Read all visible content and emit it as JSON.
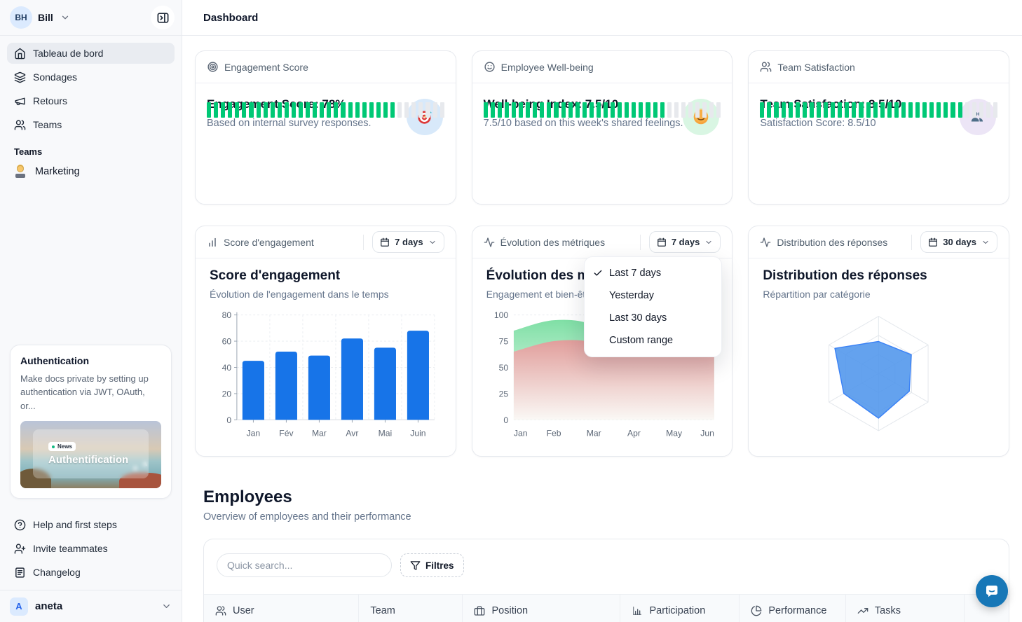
{
  "app": {
    "header_title": "Dashboard"
  },
  "sidebar": {
    "workspace": {
      "initials": "BH",
      "name": "Bill"
    },
    "nav": [
      {
        "label": "Tableau de bord",
        "icon": "home",
        "active": true
      },
      {
        "label": "Sondages",
        "icon": "layers",
        "active": false
      },
      {
        "label": "Retours",
        "icon": "megaphone",
        "active": false
      },
      {
        "label": "Teams",
        "icon": "users",
        "active": false
      }
    ],
    "section_label": "Teams",
    "teams": [
      {
        "label": "Marketing",
        "icon": "technologist-emoji"
      }
    ],
    "promo": {
      "title": "Authentication",
      "description": "Make docs private by setting up authentication via JWT, OAuth, or...",
      "badge": "News",
      "caption": "Authentification"
    },
    "footer": [
      {
        "label": "Help and first steps",
        "icon": "help-circle"
      },
      {
        "label": "Invite teammates",
        "icon": "user-plus"
      },
      {
        "label": "Changelog",
        "icon": "newspaper"
      }
    ],
    "account": {
      "initial": "A",
      "name": "aneta"
    }
  },
  "metric_cards": [
    {
      "header": "Engagement Score",
      "title": "Engagement Score: 78%",
      "subtitle": "Based on internal survey responses.",
      "progress_pct": 78,
      "icon": "target-emoji",
      "badge_bg": "#d8e9fa"
    },
    {
      "header": "Employee Well-being",
      "title": "Well-being Index: 7.5/10",
      "subtitle": "7.5/10 based on this week's shared feelings.",
      "progress_pct": 75,
      "icon": "smile-emoji",
      "badge_bg": "#d9f6e3"
    },
    {
      "header": "Team Satisfaction",
      "title": "Team Satisfaction: 8.5/10",
      "subtitle": "Satisfaction Score: 8.5/10",
      "progress_pct": 85,
      "icon": "people-emoji",
      "badge_bg": "#ece5f6"
    }
  ],
  "chart_cards": [
    {
      "header": "Score d'engagement",
      "header_icon": "bar-chart-icon",
      "range_label": "7 days",
      "title": "Score d'engagement",
      "subtitle": "Évolution de l'engagement dans le temps"
    },
    {
      "header": "Évolution des métriques",
      "header_icon": "activity-icon",
      "range_label": "7 days",
      "title": "Évolution des métriques",
      "subtitle": "Engagement et bien-être"
    },
    {
      "header": "Distribution des réponses",
      "header_icon": "activity-icon",
      "range_label": "30 days",
      "title": "Distribution des réponses",
      "subtitle": "Répartition par catégorie"
    }
  ],
  "range_menu": {
    "items": [
      {
        "label": "Last 7 days",
        "checked": true
      },
      {
        "label": "Yesterday",
        "checked": false
      },
      {
        "label": "Last 30 days",
        "checked": false
      },
      {
        "label": "Custom range",
        "checked": false
      }
    ]
  },
  "employees": {
    "title": "Employees",
    "subtitle": "Overview of employees and their performance",
    "search_placeholder": "Quick search...",
    "filters_label": "Filtres",
    "columns": [
      {
        "label": "User",
        "icon": "users-icon"
      },
      {
        "label": "Team",
        "icon": null
      },
      {
        "label": "Position",
        "icon": "briefcase-icon"
      },
      {
        "label": "Participation",
        "icon": "bar-chart-icon"
      },
      {
        "label": "Performance",
        "icon": "pie-chart-icon"
      },
      {
        "label": "Tasks",
        "icon": "trending-up-icon"
      }
    ]
  },
  "chart_data": [
    {
      "type": "bar",
      "title": "Score d'engagement",
      "subtitle": "Évolution de l'engagement dans le temps",
      "categories": [
        "Jan",
        "Fév",
        "Mar",
        "Avr",
        "Mai",
        "Juin"
      ],
      "values": [
        45,
        52,
        49,
        62,
        55,
        68
      ],
      "ylim": [
        0,
        80
      ],
      "yticks": [
        0,
        20,
        40,
        60,
        80
      ],
      "bar_color": "#1774e8",
      "grid": "dashed",
      "legend": "none"
    },
    {
      "type": "area",
      "title": "Évolution des métriques",
      "subtitle": "Engagement et bien-être",
      "x": [
        "Jan",
        "Feb",
        "Mar",
        "Apr",
        "May",
        "Jun"
      ],
      "series": [
        {
          "name": "engagement",
          "color": "#7fdfa5",
          "values": [
            85,
            95,
            90,
            62,
            68,
            66
          ]
        },
        {
          "name": "bien-être",
          "color": "#e9a2a2",
          "values": [
            65,
            75,
            74,
            60,
            64,
            65
          ]
        }
      ],
      "ylim": [
        0,
        100
      ],
      "yticks": [
        0,
        25,
        50,
        75,
        100
      ],
      "grid": "dashed",
      "legend": "none"
    },
    {
      "type": "radar",
      "title": "Distribution des réponses",
      "subtitle": "Répartition par catégorie",
      "axes_count": 6,
      "values": [
        56,
        66,
        62,
        78,
        70,
        88
      ],
      "max": 100,
      "fill_color": "#4e95ec",
      "stroke_color": "#3b82f6",
      "grid_levels": 3
    }
  ],
  "colors": {
    "progress_green": "#00c875",
    "bar_blue": "#1774e8",
    "radar_blue": "#4e95ec",
    "chat_fab": "#1777b7",
    "sidebar_bg": "#f8f9fb"
  }
}
